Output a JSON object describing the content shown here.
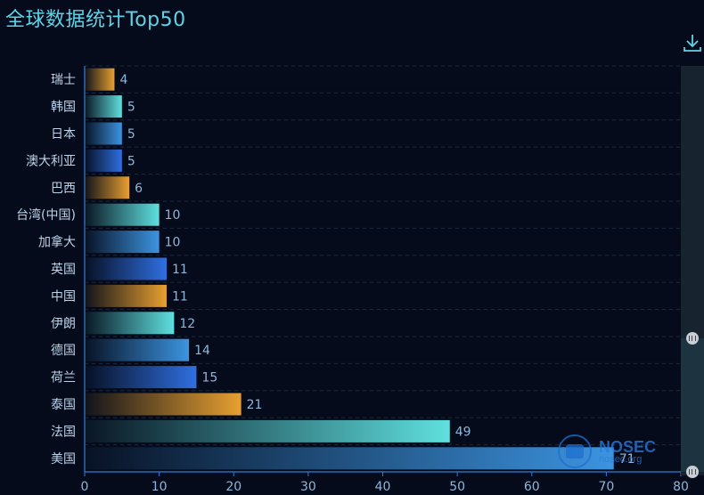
{
  "title": "全球数据统计Top50",
  "toolbar": {
    "download_icon": "download-icon"
  },
  "watermark": {
    "brand": "NOSEC",
    "url": "nosec.org"
  },
  "chart_data": {
    "type": "bar",
    "orientation": "horizontal",
    "title": "全球数据统计Top50",
    "categories": [
      "瑞士",
      "韩国",
      "日本",
      "澳大利亚",
      "巴西",
      "台湾(中国)",
      "加拿大",
      "英国",
      "中国",
      "伊朗",
      "德国",
      "荷兰",
      "泰国",
      "法国",
      "美国"
    ],
    "values": [
      4,
      5,
      5,
      5,
      6,
      10,
      10,
      11,
      11,
      12,
      14,
      15,
      21,
      49,
      71
    ],
    "value_labels": [
      "4",
      "5",
      "5",
      "5",
      "6",
      "10",
      "10",
      "11",
      "11",
      "12",
      "14",
      "15",
      "21",
      "49",
      "71"
    ],
    "xlim": [
      0,
      80
    ],
    "x_ticks": [
      0,
      10,
      20,
      30,
      40,
      50,
      60,
      70,
      80
    ],
    "x_tick_labels": [
      "0",
      "10",
      "20",
      "30",
      "40",
      "50",
      "60",
      "70",
      "80"
    ],
    "grid": true,
    "legend": "none",
    "bar_colors": [
      "#e8a030",
      "#5fe0de",
      "#3c94e0",
      "#2f6fe0"
    ]
  }
}
